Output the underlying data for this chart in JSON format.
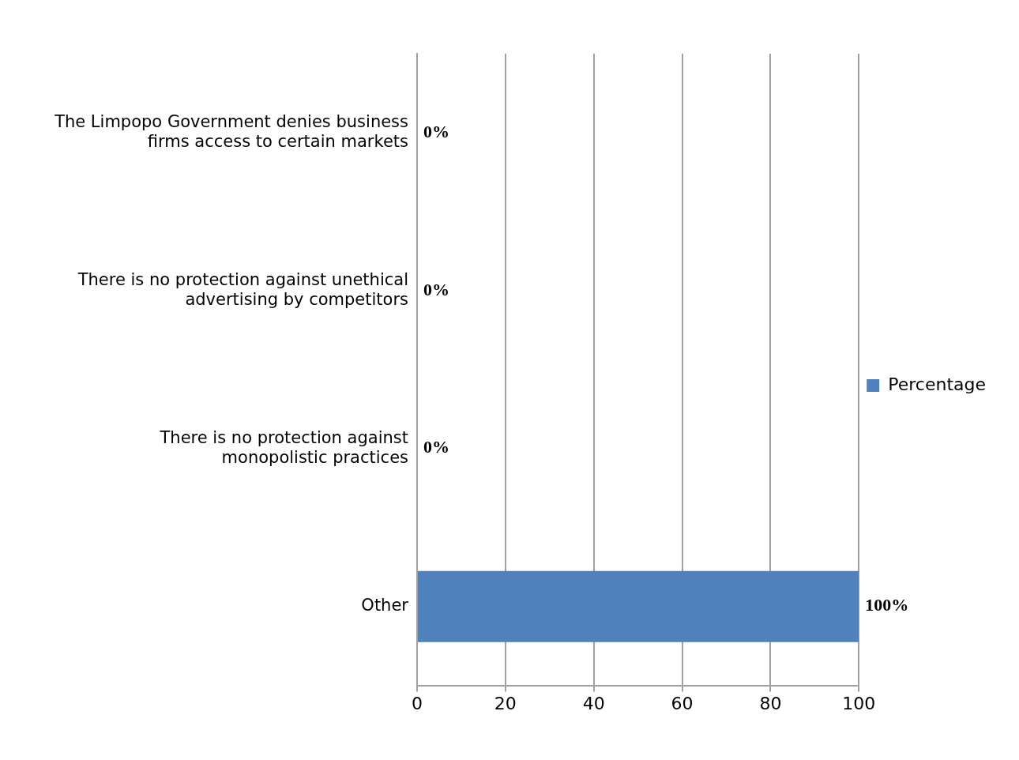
{
  "chart_data": {
    "type": "bar",
    "orientation": "horizontal",
    "categories": [
      "The Limpopo Government denies business firms access to certain markets",
      "There is no protection against unethical advertising by competitors",
      "There is no protection against monopolistic practices",
      "Other"
    ],
    "series": [
      {
        "name": "Percentage",
        "color": "#4f81bd",
        "values": [
          0,
          0,
          0,
          100
        ],
        "value_labels": [
          "0%",
          "0%",
          "0%",
          "100%"
        ]
      }
    ],
    "xlim": [
      0,
      100
    ],
    "xticks": [
      0,
      20,
      40,
      60,
      80,
      100
    ],
    "grid": "x",
    "legend": "right"
  }
}
